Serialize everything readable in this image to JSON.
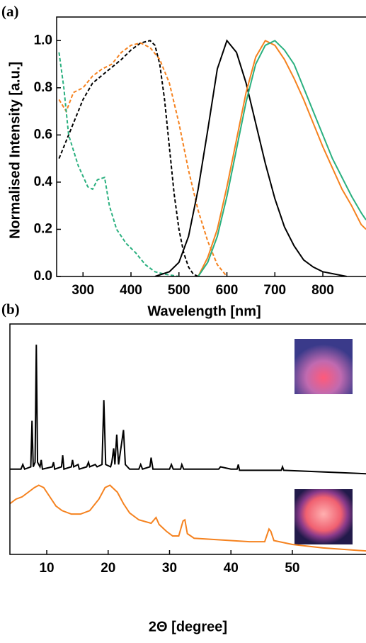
{
  "chart_data": [
    {
      "type": "line",
      "panel": "(a)",
      "xlabel": "Wavelength [nm]",
      "ylabel": "Normalised Intensity [a.u.]",
      "xlim": [
        245,
        890
      ],
      "ylim": [
        0,
        1.1
      ],
      "xticks": [
        300,
        400,
        500,
        600,
        700,
        800
      ],
      "yticks": [
        {
          "value": 0,
          "label": "0.0"
        },
        0.2,
        0.4,
        0.6,
        0.8,
        {
          "value": 1,
          "label": "1.0"
        }
      ],
      "series": [
        {
          "color": "#000000",
          "style": "dashed",
          "x": [
            250,
            270,
            300,
            320,
            350,
            380,
            400,
            420,
            440,
            450,
            460,
            470,
            480,
            490,
            500,
            510,
            520,
            530,
            540
          ],
          "values": [
            0.5,
            0.6,
            0.75,
            0.82,
            0.87,
            0.92,
            0.96,
            0.99,
            1.0,
            0.98,
            0.9,
            0.75,
            0.55,
            0.35,
            0.2,
            0.1,
            0.04,
            0.01,
            0
          ]
        },
        {
          "color": "#f5821f",
          "style": "dashed",
          "x": [
            250,
            265,
            280,
            300,
            320,
            340,
            360,
            380,
            400,
            420,
            440,
            460,
            480,
            500,
            520,
            540,
            560,
            580,
            600
          ],
          "values": [
            0.75,
            0.7,
            0.78,
            0.8,
            0.85,
            0.88,
            0.9,
            0.95,
            0.98,
            0.99,
            0.97,
            0.92,
            0.82,
            0.65,
            0.45,
            0.28,
            0.15,
            0.05,
            0
          ]
        },
        {
          "color": "#2ab07f",
          "style": "dashed",
          "x": [
            250,
            260,
            270,
            290,
            310,
            320,
            330,
            345,
            355,
            370,
            390,
            410,
            430,
            450,
            470,
            500
          ],
          "values": [
            0.95,
            0.8,
            0.6,
            0.47,
            0.38,
            0.37,
            0.41,
            0.42,
            0.3,
            0.2,
            0.14,
            0.1,
            0.05,
            0.02,
            0.01,
            0
          ]
        },
        {
          "color": "#000000",
          "style": "solid",
          "x": [
            450,
            480,
            500,
            520,
            540,
            560,
            580,
            600,
            620,
            640,
            660,
            680,
            700,
            720,
            740,
            760,
            780,
            800,
            850
          ],
          "values": [
            0,
            0.02,
            0.06,
            0.17,
            0.37,
            0.62,
            0.88,
            1.0,
            0.95,
            0.82,
            0.65,
            0.48,
            0.33,
            0.21,
            0.13,
            0.07,
            0.04,
            0.02,
            0
          ]
        },
        {
          "color": "#f5821f",
          "style": "solid",
          "x": [
            540,
            560,
            580,
            600,
            620,
            640,
            660,
            680,
            700,
            720,
            740,
            760,
            780,
            800,
            820,
            840,
            860,
            880,
            890
          ],
          "values": [
            0,
            0.08,
            0.2,
            0.38,
            0.58,
            0.78,
            0.93,
            1.0,
            0.98,
            0.92,
            0.84,
            0.75,
            0.65,
            0.55,
            0.46,
            0.37,
            0.3,
            0.22,
            0.2
          ]
        },
        {
          "color": "#2ab07f",
          "style": "solid",
          "x": [
            540,
            560,
            580,
            600,
            620,
            640,
            660,
            680,
            700,
            720,
            740,
            760,
            780,
            800,
            820,
            840,
            860,
            880,
            890
          ],
          "values": [
            0,
            0.06,
            0.17,
            0.34,
            0.54,
            0.74,
            0.9,
            0.98,
            1.0,
            0.96,
            0.9,
            0.8,
            0.7,
            0.6,
            0.5,
            0.42,
            0.34,
            0.27,
            0.24
          ]
        }
      ]
    },
    {
      "type": "line",
      "panel": "(b)",
      "xlabel": "2Θ [degree]",
      "xlim": [
        4,
        62
      ],
      "ylim": [
        0,
        100
      ],
      "xticks": [
        10,
        20,
        30,
        40,
        50
      ],
      "series": [
        {
          "color": "#000000",
          "style": "solid",
          "x": [
            4,
            5.8,
            6.1,
            6.4,
            7.4,
            7.6,
            7.8,
            8.1,
            8.3,
            8.5,
            8.9,
            9.1,
            9.3,
            10.9,
            11.1,
            11.3,
            12.4,
            12.6,
            12.8,
            14,
            14.2,
            14.4,
            15.1,
            15.3,
            16.5,
            16.8,
            17,
            17.9,
            18.2,
            19,
            19.3,
            19.6,
            20.4,
            20.6,
            20.9,
            21.1,
            21.4,
            21.7,
            22.5,
            22.8,
            23.5,
            25,
            25.3,
            25.6,
            26.8,
            27,
            27.3,
            30,
            30.3,
            30.6,
            31.8,
            32,
            32.3,
            38,
            38.3,
            40,
            41,
            41.2,
            41.4,
            48.2,
            48.4,
            48.6,
            62
          ],
          "values": [
            37,
            37,
            39,
            37,
            38,
            58,
            38,
            40,
            91,
            40,
            38,
            41,
            37,
            38,
            40,
            37,
            38,
            43,
            37,
            38,
            41,
            38,
            39,
            37,
            38,
            40,
            38,
            39,
            38,
            39,
            67,
            39,
            38,
            40,
            46,
            39,
            52,
            39,
            54,
            39,
            37,
            37,
            39,
            37,
            38,
            42,
            37,
            37,
            39,
            37,
            37,
            39,
            37,
            37,
            38,
            37,
            37,
            39,
            36.5,
            36.5,
            38,
            36.5,
            35
          ]
        },
        {
          "color": "#f5821f",
          "style": "solid",
          "x": [
            4,
            5,
            6,
            7,
            8,
            8.7,
            9.5,
            10.5,
            11.5,
            12.5,
            14,
            15.5,
            17,
            18.5,
            19.5,
            20.3,
            21.5,
            22.5,
            23.5,
            25,
            27,
            27.8,
            28.3,
            29.5,
            30.5,
            31.5,
            32.2,
            32.5,
            32.9,
            34,
            37,
            40,
            43,
            45.5,
            46.2,
            46.5,
            47,
            50,
            55,
            62
          ],
          "values": [
            22,
            24,
            25,
            27,
            29,
            30,
            29,
            25,
            21,
            19,
            17.5,
            17.5,
            19,
            24,
            29,
            30,
            27,
            22,
            18,
            15,
            13.5,
            16,
            13,
            10,
            8,
            8,
            14.5,
            15,
            9,
            7,
            6.5,
            6,
            5.5,
            5.5,
            11,
            10,
            6,
            4.3,
            2.8,
            1.5
          ]
        }
      ]
    }
  ]
}
